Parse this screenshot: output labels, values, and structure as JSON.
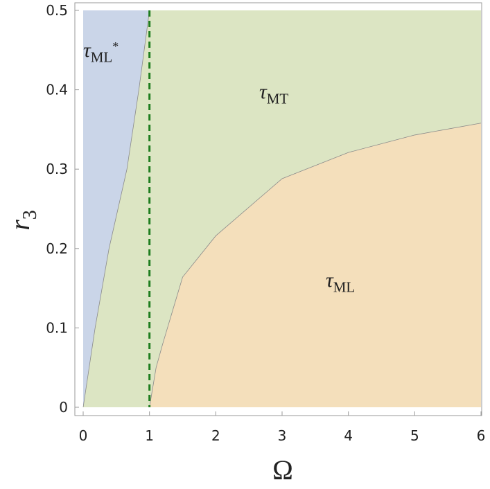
{
  "chart_data": {
    "type": "region",
    "x_label": "Ω",
    "y_label": {
      "symbol": "r",
      "sub": "3"
    },
    "xlim": [
      0,
      6
    ],
    "ylim": [
      0,
      0.5
    ],
    "xticks": [
      0,
      1,
      2,
      3,
      4,
      5,
      6
    ],
    "yticks": [
      0,
      0.1,
      0.2,
      0.3,
      0.4,
      0.5
    ],
    "background_color": "#dce5c3",
    "series": [
      {
        "label": {
          "symbol": "τ",
          "sub": "ML",
          "sup": "*"
        },
        "color": "#cad5e8",
        "side": "left",
        "x": [
          0,
          0.18,
          0.39,
          0.66,
          0.84,
          1
        ],
        "values": [
          0,
          0.1,
          0.2,
          0.3,
          0.4,
          0.5
        ]
      },
      {
        "label": {
          "symbol": "τ",
          "sub": "ML"
        },
        "color": "#f4dfbb",
        "side": "below",
        "x": [
          1,
          1.1,
          1.2,
          1.5,
          2,
          3,
          4,
          5,
          6
        ],
        "values": [
          0,
          0.05,
          0.08,
          0.164,
          0.216,
          0.288,
          0.321,
          0.343,
          0.358
        ]
      }
    ],
    "background_label": {
      "symbol": "τ",
      "sub": "MT"
    },
    "reference_line": {
      "x": 1,
      "color": "#1e7d1e",
      "dashed": true
    }
  }
}
